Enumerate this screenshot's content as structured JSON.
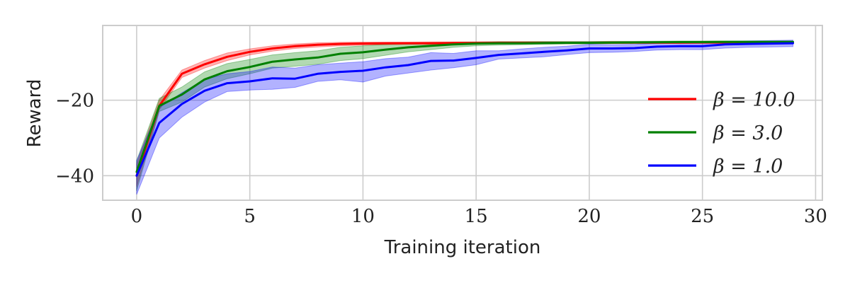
{
  "chart_data": {
    "type": "line",
    "title": "",
    "xlabel": "Training iteration",
    "ylabel": "Reward",
    "xlim": [
      -1.5,
      30.3
    ],
    "ylim": [
      -46.5,
      -0.2
    ],
    "xticks": [
      0,
      5,
      10,
      15,
      20,
      25,
      30
    ],
    "yticks": [
      -20,
      -40
    ],
    "xtick_labels": [
      "0",
      "5",
      "10",
      "15",
      "20",
      "25",
      "30"
    ],
    "ytick_labels": [
      "−20",
      "−40"
    ],
    "grid": true,
    "legend_position": "lower right",
    "x": [
      0,
      1,
      2,
      3,
      4,
      5,
      6,
      7,
      8,
      9,
      10,
      11,
      12,
      13,
      14,
      15,
      16,
      17,
      18,
      19,
      20,
      21,
      22,
      23,
      24,
      25,
      26,
      27,
      28,
      29
    ],
    "series": [
      {
        "name": "β = 10.0",
        "color": "#ff0000",
        "values": [
          -40,
          -21.5,
          -13,
          -10.5,
          -8.5,
          -7.2,
          -6.3,
          -5.7,
          -5.3,
          -5.1,
          -5.0,
          -4.95,
          -4.9,
          -4.9,
          -4.85,
          -4.85,
          -4.8,
          -4.8,
          -4.8,
          -4.8,
          -4.8,
          -4.75,
          -4.75,
          -4.75,
          -4.75,
          -4.7,
          -4.7,
          -4.7,
          -4.7,
          -4.7
        ],
        "lower": [
          -43,
          -22.5,
          -14,
          -11.5,
          -9.5,
          -8.0,
          -7.0,
          -6.3,
          -5.9,
          -5.6,
          -5.4,
          -5.3,
          -5.2,
          -5.2,
          -5.1,
          -5.1,
          -5.1,
          -5.05,
          -5.05,
          -5.05,
          -5.0,
          -5.0,
          -5.0,
          -5.0,
          -5.0,
          -5.0,
          -5.0,
          -5.0,
          -5.0,
          -5.0
        ],
        "upper": [
          -37,
          -20,
          -12,
          -9.5,
          -7.5,
          -6.4,
          -5.6,
          -5.1,
          -4.8,
          -4.65,
          -4.6,
          -4.6,
          -4.6,
          -4.55,
          -4.55,
          -4.55,
          -4.5,
          -4.5,
          -4.5,
          -4.5,
          -4.5,
          -4.45,
          -4.45,
          -4.45,
          -4.45,
          -4.4,
          -4.4,
          -4.4,
          -4.4,
          -4.4
        ]
      },
      {
        "name": "β = 3.0",
        "color": "#008000",
        "values": [
          -39,
          -21.5,
          -18.5,
          -14.5,
          -12.3,
          -11.2,
          -9.8,
          -9.2,
          -8.7,
          -7.7,
          -7.3,
          -6.6,
          -6.0,
          -5.6,
          -5.2,
          -5.0,
          -4.9,
          -4.9,
          -4.85,
          -4.8,
          -4.8,
          -4.75,
          -4.7,
          -4.65,
          -4.6,
          -4.6,
          -4.55,
          -4.55,
          -4.55,
          -4.55
        ],
        "lower": [
          -44,
          -23,
          -20.5,
          -16.5,
          -14.3,
          -13,
          -11.5,
          -11,
          -10.5,
          -9.5,
          -9,
          -8.1,
          -7.2,
          -6.6,
          -6.0,
          -5.6,
          -5.4,
          -5.3,
          -5.2,
          -5.1,
          -5.1,
          -5.0,
          -4.95,
          -4.9,
          -4.85,
          -4.85,
          -4.8,
          -4.8,
          -4.8,
          -4.8
        ],
        "upper": [
          -36,
          -19.5,
          -16.5,
          -12.5,
          -10.3,
          -9.2,
          -8.0,
          -7.4,
          -6.9,
          -6.0,
          -5.6,
          -5.2,
          -4.9,
          -4.7,
          -4.6,
          -4.55,
          -4.5,
          -4.5,
          -4.45,
          -4.45,
          -4.45,
          -4.4,
          -4.4,
          -4.35,
          -4.3,
          -4.3,
          -4.3,
          -4.3,
          -4.3,
          -4.3
        ]
      },
      {
        "name": "β = 1.0",
        "color": "#0000ff",
        "values": [
          -40,
          -26,
          -21,
          -17.5,
          -15.5,
          -15.0,
          -14.2,
          -14.3,
          -13.0,
          -12.5,
          -12.2,
          -11.3,
          -10.7,
          -9.6,
          -9.5,
          -8.8,
          -8.0,
          -7.6,
          -7.2,
          -6.8,
          -6.3,
          -6.3,
          -6.2,
          -5.8,
          -5.7,
          -5.7,
          -5.2,
          -5.1,
          -5.0,
          -4.9
        ],
        "lower": [
          -45,
          -30,
          -24.5,
          -20.5,
          -17.7,
          -17.3,
          -17.1,
          -16.6,
          -15.0,
          -14.6,
          -15.2,
          -13.6,
          -12.8,
          -12.0,
          -11.4,
          -10.6,
          -9.1,
          -8.8,
          -8.5,
          -7.9,
          -7.4,
          -7.3,
          -7.1,
          -6.7,
          -6.6,
          -6.6,
          -6.2,
          -6.0,
          -5.9,
          -5.8
        ],
        "upper": [
          -36,
          -22,
          -18,
          -14.5,
          -13,
          -12.4,
          -11.2,
          -11.5,
          -10.6,
          -10.2,
          -9.8,
          -9.0,
          -8.6,
          -7.4,
          -7.6,
          -6.9,
          -6.9,
          -6.4,
          -6.0,
          -5.7,
          -5.2,
          -5.3,
          -5.2,
          -4.9,
          -4.8,
          -4.8,
          -4.4,
          -4.3,
          -4.2,
          -4.1
        ]
      }
    ]
  }
}
